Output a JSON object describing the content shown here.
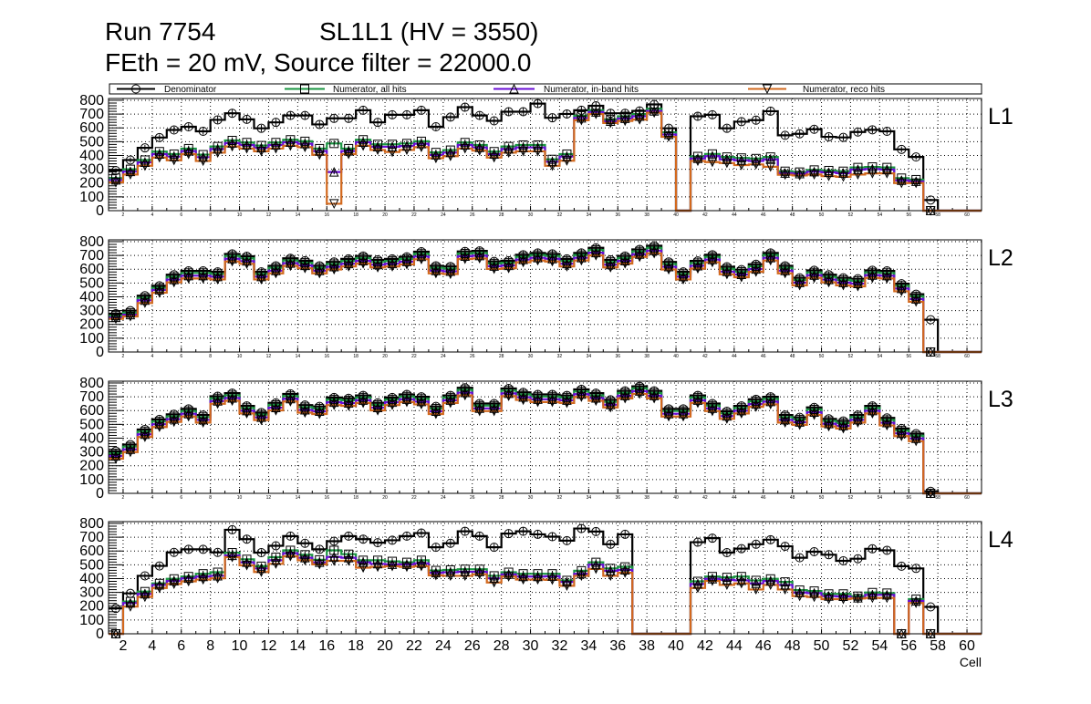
{
  "header": {
    "run": "Run 7754",
    "chamber": "SL1L1 (HV = 3550)",
    "settings": "FEth = 20 mV, Source filter = 22000.0"
  },
  "legend": [
    {
      "label": "Denominator",
      "color": "#000000",
      "marker": "circle"
    },
    {
      "label": "Numerator, all hits",
      "color": "#1a9641",
      "marker": "square"
    },
    {
      "label": "Numerator, in-band hits",
      "color": "#6a0dd6",
      "marker": "triangle-up"
    },
    {
      "label": "Numerator, reco hits",
      "color": "#d2691e",
      "marker": "triangle-down"
    }
  ],
  "axes": {
    "xlabel": "Cell",
    "xlim": [
      1,
      61
    ],
    "ylim": [
      0,
      800
    ],
    "x_ticks": [
      2,
      4,
      6,
      8,
      10,
      12,
      14,
      16,
      18,
      20,
      22,
      24,
      26,
      28,
      30,
      32,
      34,
      36,
      38,
      40,
      42,
      44,
      46,
      48,
      50,
      52,
      54,
      56,
      58,
      60
    ],
    "y_ticks": [
      0,
      100,
      200,
      300,
      400,
      500,
      600,
      700,
      800
    ]
  },
  "chart_data": [
    {
      "type": "line",
      "label": "L1",
      "grid": true,
      "legend_position": "top",
      "bin_low_edges_start": 1,
      "series": [
        {
          "name": "Denominator",
          "values": [
            290,
            367,
            455,
            530,
            585,
            608,
            575,
            658,
            706,
            662,
            597,
            640,
            690,
            690,
            625,
            669,
            669,
            728,
            640,
            695,
            695,
            728,
            608,
            678,
            750,
            690,
            651,
            717,
            717,
            776,
            673,
            701,
            728,
            760,
            706,
            706,
            723,
            770,
            597,
            0,
            684,
            695,
            597,
            645,
            656,
            721,
            546,
            557,
            590,
            535,
            531,
            570,
            586,
            575,
            444,
            389,
            77,
            0,
            0,
            0
          ]
        },
        {
          "name": "Numerator, all hits",
          "values": [
            236,
            300,
            367,
            428,
            410,
            450,
            406,
            465,
            509,
            494,
            472,
            494,
            514,
            503,
            450,
            487,
            450,
            514,
            481,
            481,
            487,
            503,
            422,
            439,
            494,
            476,
            428,
            465,
            476,
            476,
            372,
            410,
            688,
            728,
            662,
            684,
            700,
            739,
            568,
            0,
            393,
            411,
            389,
            382,
            378,
            389,
            286,
            280,
            295,
            291,
            286,
            313,
            317,
            313,
            236,
            225,
            0,
            0,
            0,
            0
          ]
        },
        {
          "name": "Numerator, in-band hits",
          "values": [
            222,
            283,
            350,
            410,
            392,
            432,
            388,
            447,
            490,
            476,
            455,
            476,
            496,
            485,
            432,
            280,
            432,
            496,
            463,
            463,
            469,
            485,
            404,
            421,
            476,
            458,
            410,
            447,
            458,
            458,
            355,
            392,
            672,
            715,
            648,
            668,
            684,
            722,
            552,
            0,
            378,
            395,
            372,
            365,
            360,
            372,
            272,
            268,
            282,
            278,
            272,
            298,
            302,
            298,
            220,
            212,
            0,
            0,
            0,
            0
          ]
        },
        {
          "name": "Numerator, reco hits",
          "values": [
            205,
            262,
            325,
            385,
            365,
            410,
            360,
            420,
            465,
            450,
            430,
            450,
            470,
            460,
            405,
            50,
            410,
            470,
            440,
            425,
            440,
            460,
            380,
            395,
            450,
            435,
            385,
            420,
            430,
            430,
            325,
            362,
            655,
            700,
            635,
            650,
            660,
            710,
            535,
            0,
            360,
            352,
            345,
            330,
            335,
            318,
            260,
            255,
            262,
            250,
            245,
            262,
            270,
            270,
            200,
            200,
            0,
            0,
            0,
            0
          ]
        }
      ]
    },
    {
      "type": "line",
      "label": "L2",
      "grid": true,
      "bin_low_edges_start": 1,
      "series": [
        {
          "name": "Denominator",
          "values": [
            278,
            300,
            408,
            480,
            560,
            588,
            588,
            581,
            711,
            694,
            581,
            625,
            679,
            662,
            625,
            653,
            675,
            696,
            668,
            675,
            690,
            727,
            625,
            620,
            729,
            733,
            657,
            662,
            705,
            718,
            711,
            675,
            718,
            755,
            668,
            696,
            744,
            770,
            653,
            581,
            660,
            705,
            618,
            597,
            636,
            718,
            625,
            538,
            592,
            560,
            538,
            531,
            592,
            588,
            495,
            419,
            234,
            0,
            0,
            0
          ]
        },
        {
          "name": "Numerator, all hits",
          "values": [
            263,
            285,
            393,
            465,
            545,
            573,
            573,
            566,
            696,
            679,
            566,
            610,
            664,
            647,
            610,
            638,
            660,
            681,
            653,
            660,
            675,
            712,
            610,
            605,
            714,
            718,
            642,
            647,
            690,
            703,
            696,
            660,
            703,
            740,
            653,
            681,
            729,
            755,
            638,
            566,
            645,
            690,
            603,
            582,
            621,
            703,
            610,
            523,
            577,
            545,
            523,
            516,
            577,
            573,
            480,
            404,
            0,
            0,
            0,
            0
          ]
        },
        {
          "name": "Numerator, in-band hits",
          "values": [
            250,
            270,
            375,
            450,
            525,
            553,
            553,
            546,
            676,
            659,
            546,
            590,
            644,
            627,
            590,
            618,
            640,
            661,
            633,
            640,
            655,
            692,
            590,
            585,
            694,
            698,
            622,
            627,
            670,
            683,
            676,
            640,
            683,
            720,
            633,
            661,
            709,
            735,
            618,
            546,
            625,
            670,
            583,
            562,
            601,
            683,
            590,
            503,
            557,
            525,
            503,
            496,
            557,
            553,
            460,
            384,
            0,
            0,
            0,
            0
          ]
        },
        {
          "name": "Numerator, reco hits",
          "values": [
            240,
            258,
            355,
            430,
            505,
            533,
            533,
            526,
            656,
            639,
            526,
            570,
            624,
            607,
            570,
            598,
            620,
            641,
            613,
            620,
            635,
            672,
            570,
            565,
            674,
            678,
            602,
            607,
            650,
            663,
            656,
            620,
            663,
            700,
            613,
            641,
            689,
            715,
            598,
            526,
            605,
            650,
            563,
            542,
            581,
            663,
            570,
            483,
            537,
            505,
            483,
            476,
            537,
            533,
            440,
            364,
            0,
            0,
            0,
            0
          ]
        }
      ]
    },
    {
      "type": "line",
      "label": "L3",
      "grid": true,
      "bin_low_edges_start": 1,
      "series": [
        {
          "name": "Denominator",
          "values": [
            306,
            354,
            463,
            536,
            573,
            612,
            568,
            704,
            726,
            634,
            586,
            656,
            721,
            640,
            630,
            695,
            689,
            710,
            656,
            695,
            717,
            700,
            630,
            710,
            765,
            651,
            651,
            760,
            732,
            717,
            717,
            710,
            754,
            726,
            678,
            743,
            776,
            743,
            612,
            612,
            710,
            651,
            595,
            634,
            682,
            700,
            568,
            551,
            623,
            540,
            525,
            568,
            634,
            547,
            470,
            433,
            15,
            0,
            0,
            0
          ]
        },
        {
          "name": "Numerator, all hits",
          "values": [
            291,
            339,
            448,
            521,
            558,
            597,
            553,
            689,
            711,
            619,
            571,
            641,
            706,
            625,
            615,
            680,
            674,
            695,
            641,
            680,
            702,
            685,
            615,
            695,
            750,
            636,
            636,
            745,
            717,
            702,
            702,
            695,
            739,
            711,
            663,
            728,
            761,
            728,
            597,
            597,
            695,
            636,
            580,
            619,
            667,
            685,
            553,
            536,
            608,
            525,
            510,
            553,
            619,
            532,
            455,
            418,
            0,
            0,
            0,
            0
          ]
        },
        {
          "name": "Numerator, in-band hits",
          "values": [
            271,
            319,
            428,
            501,
            538,
            577,
            533,
            669,
            691,
            599,
            551,
            621,
            686,
            605,
            595,
            660,
            654,
            675,
            621,
            660,
            682,
            665,
            595,
            675,
            730,
            616,
            616,
            725,
            697,
            682,
            682,
            675,
            719,
            691,
            643,
            708,
            741,
            708,
            577,
            577,
            675,
            616,
            560,
            599,
            647,
            665,
            533,
            516,
            588,
            505,
            490,
            533,
            599,
            512,
            435,
            398,
            0,
            0,
            0,
            0
          ]
        },
        {
          "name": "Numerator, reco hits",
          "values": [
            251,
            299,
            408,
            481,
            518,
            557,
            513,
            649,
            671,
            579,
            531,
            601,
            666,
            585,
            575,
            640,
            634,
            655,
            601,
            640,
            662,
            645,
            575,
            655,
            710,
            596,
            596,
            705,
            677,
            662,
            662,
            655,
            699,
            671,
            623,
            688,
            721,
            688,
            557,
            557,
            655,
            596,
            540,
            579,
            627,
            645,
            513,
            496,
            568,
            485,
            470,
            513,
            579,
            492,
            415,
            378,
            0,
            0,
            0,
            0
          ]
        }
      ]
    },
    {
      "type": "line",
      "label": "L4",
      "grid": true,
      "bin_low_edges_start": 1,
      "series": [
        {
          "name": "Denominator",
          "values": [
            184,
            293,
            420,
            492,
            590,
            612,
            612,
            590,
            754,
            686,
            588,
            638,
            708,
            656,
            612,
            671,
            708,
            686,
            660,
            678,
            708,
            730,
            627,
            656,
            743,
            708,
            627,
            726,
            743,
            721,
            704,
            675,
            763,
            741,
            649,
            721,
            0,
            0,
            0,
            0,
            664,
            693,
            588,
            617,
            649,
            682,
            634,
            551,
            595,
            573,
            529,
            544,
            616,
            605,
            490,
            474,
            195,
            0,
            0,
            0
          ]
        },
        {
          "name": "Numerator, all hits",
          "values": [
            0,
            234,
            306,
            365,
            398,
            415,
            435,
            446,
            588,
            540,
            490,
            555,
            605,
            573,
            536,
            605,
            577,
            533,
            533,
            525,
            518,
            533,
            459,
            463,
            468,
            468,
            420,
            446,
            435,
            435,
            435,
            387,
            457,
            518,
            474,
            485,
            0,
            0,
            0,
            0,
            380,
            415,
            409,
            415,
            387,
            398,
            376,
            317,
            310,
            289,
            289,
            273,
            299,
            295,
            0,
            251,
            0,
            0,
            0,
            0
          ]
        },
        {
          "name": "Numerator, in-band hits",
          "values": [
            0,
            223,
            289,
            354,
            383,
            402,
            415,
            420,
            568,
            518,
            474,
            533,
            584,
            551,
            518,
            557,
            551,
            518,
            507,
            503,
            503,
            511,
            442,
            446,
            450,
            450,
            402,
            431,
            415,
            415,
            417,
            376,
            435,
            501,
            457,
            463,
            0,
            0,
            0,
            0,
            361,
            398,
            391,
            387,
            365,
            383,
            354,
            299,
            295,
            273,
            271,
            260,
            282,
            282,
            0,
            238,
            0,
            0,
            0,
            0
          ]
        },
        {
          "name": "Numerator, reco hits",
          "values": [
            0,
            197,
            267,
            332,
            361,
            380,
            393,
            402,
            555,
            496,
            448,
            507,
            562,
            533,
            503,
            529,
            529,
            479,
            485,
            490,
            485,
            490,
            424,
            420,
            420,
            431,
            372,
            415,
            393,
            393,
            391,
            348,
            420,
            470,
            420,
            442,
            0,
            0,
            0,
            0,
            332,
            383,
            354,
            365,
            321,
            354,
            321,
            273,
            267,
            251,
            251,
            256,
            260,
            260,
            0,
            223,
            0,
            0,
            0,
            0
          ]
        }
      ]
    }
  ]
}
